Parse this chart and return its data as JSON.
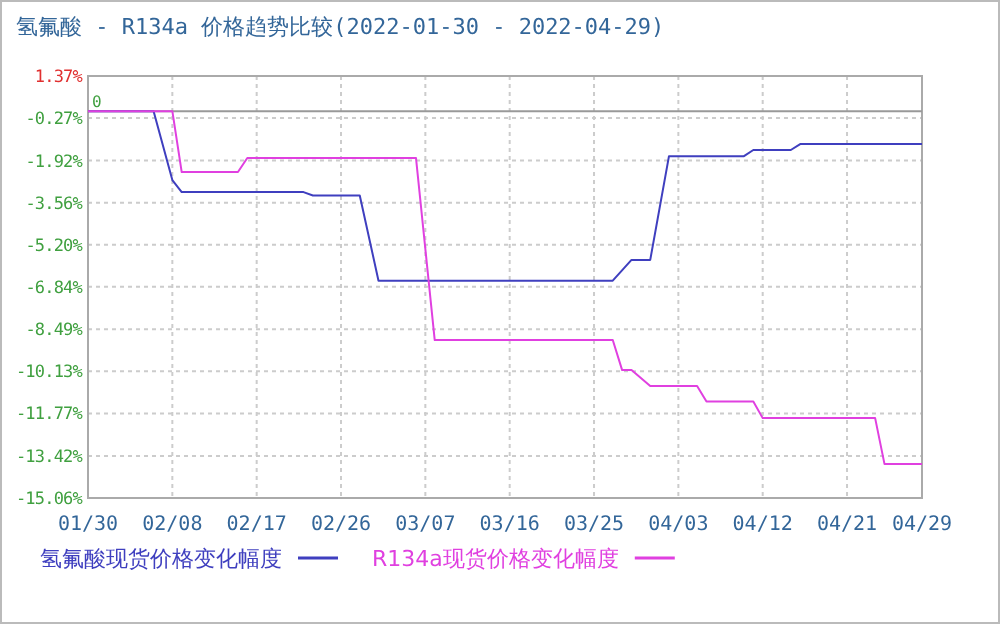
{
  "chart_data": {
    "type": "line",
    "title": "氢氟酸 - R134a 价格趋势比较(2022-01-30 - 2022-04-29)",
    "xlim": [
      "2022-01-30",
      "2022-04-29"
    ],
    "xticks": [
      {
        "value": "2022-01-30",
        "label": "01/30"
      },
      {
        "value": "2022-02-08",
        "label": "02/08"
      },
      {
        "value": "2022-02-17",
        "label": "02/17"
      },
      {
        "value": "2022-02-26",
        "label": "02/26"
      },
      {
        "value": "2022-03-07",
        "label": "03/07"
      },
      {
        "value": "2022-03-16",
        "label": "03/16"
      },
      {
        "value": "2022-03-25",
        "label": "03/25"
      },
      {
        "value": "2022-04-03",
        "label": "04/03"
      },
      {
        "value": "2022-04-12",
        "label": "04/12"
      },
      {
        "value": "2022-04-21",
        "label": "04/21"
      },
      {
        "value": "2022-04-29",
        "label": "04/29"
      }
    ],
    "ylim": [
      -15.06,
      1.37
    ],
    "yticks": [
      {
        "value": 1.37,
        "label": "1.37%"
      },
      {
        "value": -0.27,
        "label": "-0.27%"
      },
      {
        "value": -1.92,
        "label": "-1.92%"
      },
      {
        "value": -3.56,
        "label": "-3.56%"
      },
      {
        "value": -5.2,
        "label": "-5.20%"
      },
      {
        "value": -6.84,
        "label": "-6.84%"
      },
      {
        "value": -8.49,
        "label": "-8.49%"
      },
      {
        "value": -10.13,
        "label": "-10.13%"
      },
      {
        "value": -11.77,
        "label": "-11.77%"
      },
      {
        "value": -13.42,
        "label": "-13.42%"
      },
      {
        "value": -15.06,
        "label": "-15.06%"
      }
    ],
    "grid": true,
    "legend": "bottom",
    "marker": "none",
    "line_style": "solid",
    "ref_lines": [
      {
        "axis": "y",
        "value": 0,
        "label": "0",
        "color": "#999999"
      }
    ],
    "series": [
      {
        "name": "氢氟酸现货价格变化幅度",
        "color": "#3f3fbf",
        "x": [
          "2022-01-30",
          "2022-02-06",
          "2022-02-08",
          "2022-02-09",
          "2022-02-22",
          "2022-02-23",
          "2022-02-28",
          "2022-03-02",
          "2022-03-27",
          "2022-03-29",
          "2022-03-31",
          "2022-04-02",
          "2022-04-10",
          "2022-04-11",
          "2022-04-15",
          "2022-04-16",
          "2022-04-29"
        ],
        "values": [
          0,
          0,
          -2.68,
          -3.15,
          -3.15,
          -3.28,
          -3.28,
          -6.6,
          -6.6,
          -5.79,
          -5.79,
          -1.75,
          -1.75,
          -1.51,
          -1.51,
          -1.28,
          -1.28
        ]
      },
      {
        "name": "R134a现货价格变化幅度",
        "color": "#e040e0",
        "x": [
          "2022-01-30",
          "2022-02-08",
          "2022-02-09",
          "2022-02-15",
          "2022-02-16",
          "2022-03-06",
          "2022-03-08",
          "2022-03-27",
          "2022-03-28",
          "2022-03-29",
          "2022-03-31",
          "2022-04-05",
          "2022-04-06",
          "2022-04-11",
          "2022-04-12",
          "2022-04-24",
          "2022-04-25",
          "2022-04-29"
        ],
        "values": [
          0,
          0,
          -2.37,
          -2.37,
          -1.82,
          -1.82,
          -8.91,
          -8.91,
          -10.08,
          -10.08,
          -10.7,
          -10.7,
          -11.3,
          -11.3,
          -11.95,
          -11.95,
          -13.74,
          -13.74
        ]
      }
    ]
  }
}
